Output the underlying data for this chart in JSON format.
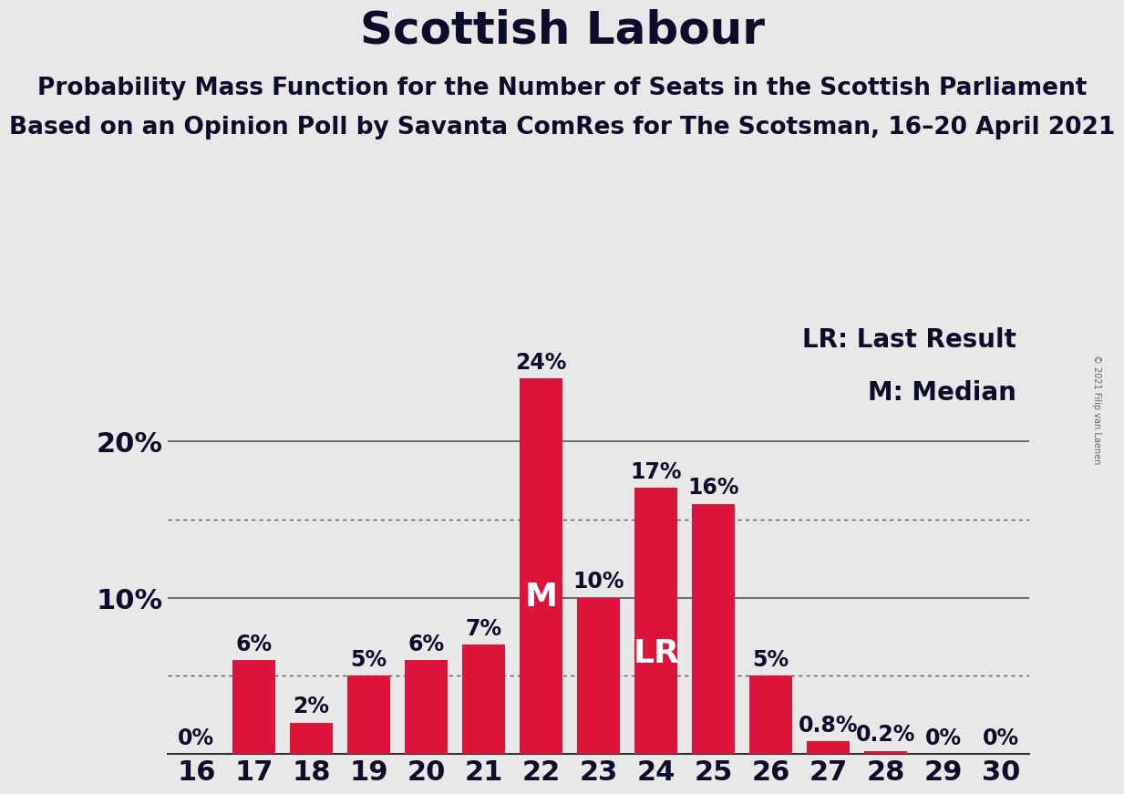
{
  "title": "Scottish Labour",
  "subtitle1": "Probability Mass Function for the Number of Seats in the Scottish Parliament",
  "subtitle2": "Based on an Opinion Poll by Savanta ComRes for The Scotsman, 16–20 April 2021",
  "copyright": "© 2021 Filip van Laenen",
  "seats": [
    16,
    17,
    18,
    19,
    20,
    21,
    22,
    23,
    24,
    25,
    26,
    27,
    28,
    29,
    30
  ],
  "probabilities": [
    0.0,
    6.0,
    2.0,
    5.0,
    6.0,
    7.0,
    24.0,
    10.0,
    17.0,
    16.0,
    5.0,
    0.8,
    0.2,
    0.0,
    0.0
  ],
  "bar_color": "#DC143C",
  "bg_color": "#E8E8E8",
  "median_seat": 22,
  "lr_seat": 24,
  "legend_lr": "LR: Last Result",
  "legend_m": "M: Median",
  "dotted_lines": [
    5.0,
    15.0
  ],
  "title_fontsize": 36,
  "subtitle_fontsize": 19,
  "tick_fontsize": 22,
  "bar_label_fontsize": 17,
  "legend_fontsize": 20,
  "annotation_fontsize": 26,
  "ylim_max": 28,
  "bar_width": 0.75
}
